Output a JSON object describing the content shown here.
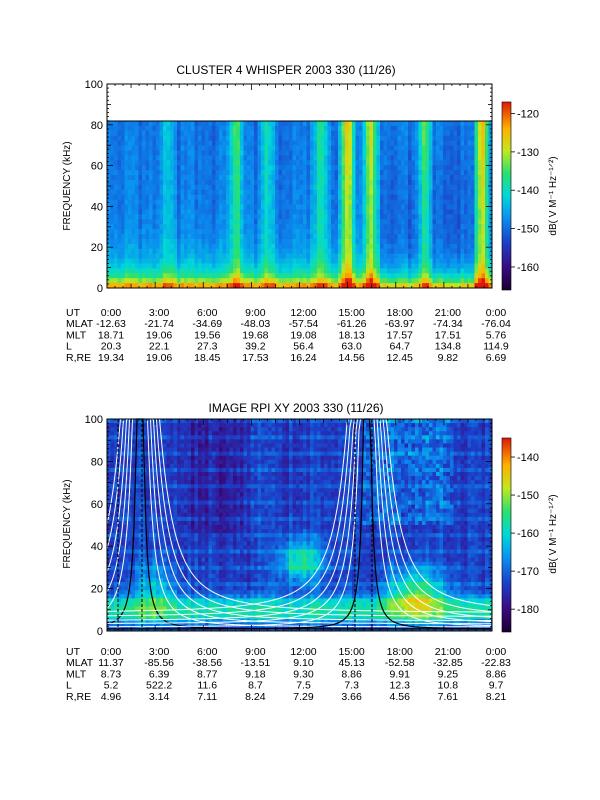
{
  "chart_data": [
    {
      "type": "heatmap",
      "title": "CLUSTER 4 WHISPER 2003 330 (11/26)",
      "ylabel": "FREQUENCY (kHz)",
      "ylim": [
        0,
        100
      ],
      "yticks": [
        "0",
        "20",
        "40",
        "60",
        "80",
        "100"
      ],
      "data_top_khz": 80,
      "colorbar": {
        "label": "dB( V M⁻¹ Hz⁻¹ᐟ²)",
        "range": [
          -166,
          -117
        ],
        "ticks": [
          "-120",
          "-130",
          "-140",
          "-150",
          "-160"
        ]
      },
      "ephemeris": [
        {
          "label": "UT",
          "values": [
            "0:00",
            "3:00",
            "6:00",
            "9:00",
            "12:00",
            "15:00",
            "18:00",
            "21:00",
            "0:00"
          ]
        },
        {
          "label": "MLAT",
          "values": [
            "-12.63",
            "-21.74",
            "-34.69",
            "-48.03",
            "-57.54",
            "-61.26",
            "-63.97",
            "-74.34",
            "-76.04"
          ]
        },
        {
          "label": "MLT",
          "values": [
            "18.71",
            "19.06",
            "19.56",
            "19.68",
            "19.08",
            "18.13",
            "17.57",
            "17.51",
            "5.76"
          ]
        },
        {
          "label": "L",
          "values": [
            "20.3",
            "22.1",
            "27.3",
            "39.2",
            "56.4",
            "63.0",
            "64.7",
            "134.8",
            "114.9"
          ]
        },
        {
          "label": "R,RE",
          "values": [
            "19.34",
            "19.06",
            "18.45",
            "17.53",
            "16.24",
            "14.56",
            "12.45",
            "9.82",
            "6.69"
          ]
        }
      ]
    },
    {
      "type": "heatmap",
      "title": "IMAGE RPI XY 2003 330 (11/26)",
      "ylabel": "FREQUENCY (kHz)",
      "ylim": [
        0,
        100
      ],
      "yticks": [
        "0",
        "20",
        "40",
        "60",
        "80",
        "100"
      ],
      "colorbar": {
        "label": "dB( V M⁻¹ Hz⁻¹ᐟ²)",
        "range": [
          -186,
          -135
        ],
        "ticks": [
          "-140",
          "-150",
          "-160",
          "-170",
          "-180"
        ]
      },
      "ephemeris": [
        {
          "label": "UT",
          "values": [
            "0:00",
            "3:00",
            "6:00",
            "9:00",
            "12:00",
            "15:00",
            "18:00",
            "21:00",
            "0:00"
          ]
        },
        {
          "label": "MLAT",
          "values": [
            "11.37",
            "-85.56",
            "-38.56",
            "-13.51",
            "9.10",
            "45.13",
            "-52.58",
            "-32.85",
            "-22.83"
          ]
        },
        {
          "label": "MLT",
          "values": [
            "8.73",
            "6.39",
            "8.77",
            "9.18",
            "9.30",
            "8.86",
            "9.91",
            "9.25",
            "8.86"
          ]
        },
        {
          "label": "L",
          "values": [
            "5.2",
            "522.2",
            "11.6",
            "8.7",
            "7.5",
            "7.3",
            "12.3",
            "10.8",
            "9.7"
          ]
        },
        {
          "label": "R,RE",
          "values": [
            "4.96",
            "3.14",
            "7.11",
            "8.24",
            "7.29",
            "3.66",
            "4.56",
            "7.61",
            "8.21"
          ]
        }
      ]
    }
  ]
}
